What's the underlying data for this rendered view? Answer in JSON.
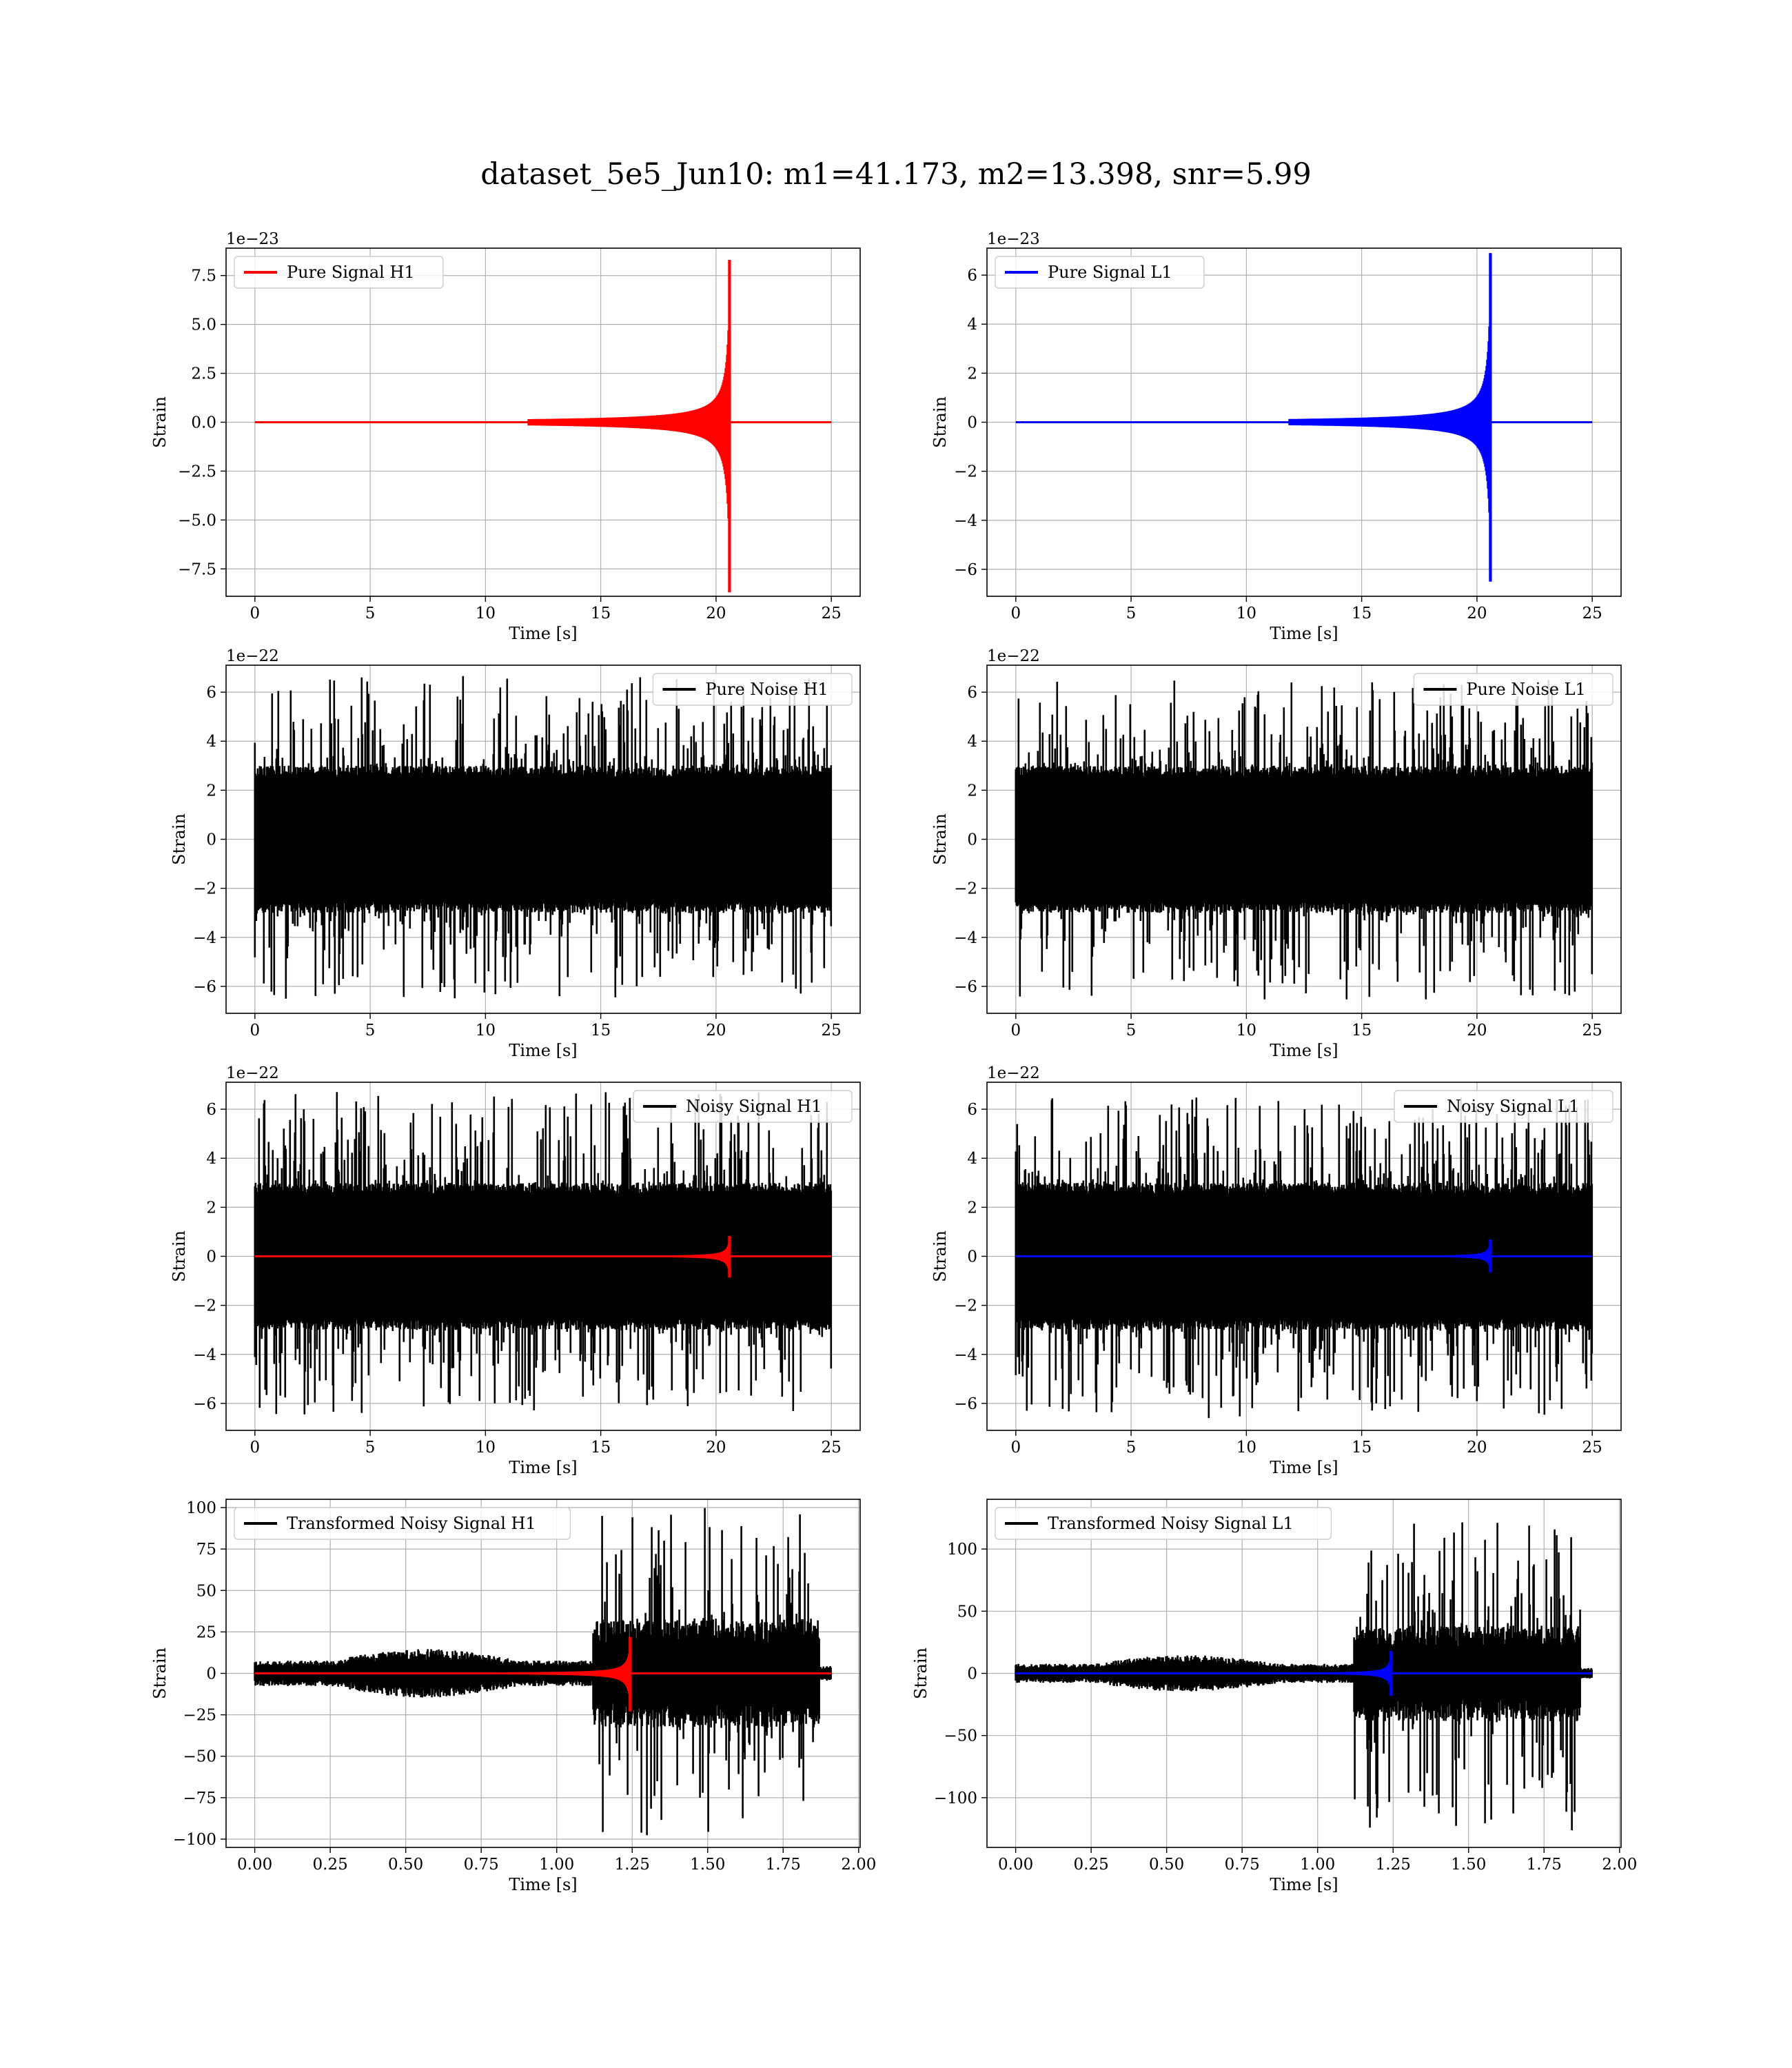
{
  "figure": {
    "title": "dataset_5e5_Jun10: m1=41.173, m2=13.398, snr=5.99"
  },
  "colors": {
    "h1_signal": "#ff0000",
    "l1_signal": "#0000ff",
    "noise": "#000000",
    "grid": "#b0b0b0"
  },
  "chart_data": [
    {
      "id": "pure-signal-h1",
      "type": "line",
      "title": "",
      "xlabel": "Time [s]",
      "ylabel": "Strain",
      "offset_text": "1e−23",
      "xlim": [
        -1.25,
        26.25
      ],
      "ylim": [
        -8.9,
        8.9
      ],
      "xticks": [
        0,
        5,
        10,
        15,
        20,
        25
      ],
      "xtick_labels": [
        "0",
        "5",
        "10",
        "15",
        "20",
        "25"
      ],
      "yticks": [
        -7.5,
        -5.0,
        -2.5,
        0.0,
        2.5,
        5.0,
        7.5
      ],
      "ytick_labels": [
        "−7.5",
        "−5.0",
        "−2.5",
        "0.0",
        "2.5",
        "5.0",
        "7.5"
      ],
      "grid": true,
      "legend": "top-left",
      "series": [
        {
          "name": "Pure Signal H1",
          "kind": "chirp",
          "color": "#ff0000",
          "t_start": 0,
          "t_end": 25,
          "t_merger": 20.6,
          "peak_pos": 8.3,
          "peak_neg": -8.7
        }
      ]
    },
    {
      "id": "pure-signal-l1",
      "type": "line",
      "title": "",
      "xlabel": "Time [s]",
      "ylabel": "Strain",
      "offset_text": "1e−23",
      "xlim": [
        -1.25,
        26.25
      ],
      "ylim": [
        -7.1,
        7.1
      ],
      "xticks": [
        0,
        5,
        10,
        15,
        20,
        25
      ],
      "xtick_labels": [
        "0",
        "5",
        "10",
        "15",
        "20",
        "25"
      ],
      "yticks": [
        -6,
        -4,
        -2,
        0,
        2,
        4,
        6
      ],
      "ytick_labels": [
        "−6",
        "−4",
        "−2",
        "0",
        "2",
        "4",
        "6"
      ],
      "grid": true,
      "legend": "top-left",
      "series": [
        {
          "name": "Pure Signal L1",
          "kind": "chirp",
          "color": "#0000ff",
          "t_start": 0,
          "t_end": 25,
          "t_merger": 20.6,
          "peak_pos": 6.9,
          "peak_neg": -6.5
        }
      ]
    },
    {
      "id": "pure-noise-h1",
      "type": "line",
      "title": "",
      "xlabel": "Time [s]",
      "ylabel": "Strain",
      "offset_text": "1e−22",
      "xlim": [
        -1.25,
        26.25
      ],
      "ylim": [
        -7.1,
        7.1
      ],
      "xticks": [
        0,
        5,
        10,
        15,
        20,
        25
      ],
      "xtick_labels": [
        "0",
        "5",
        "10",
        "15",
        "20",
        "25"
      ],
      "yticks": [
        -6,
        -4,
        -2,
        0,
        2,
        4,
        6
      ],
      "ytick_labels": [
        "−6",
        "−4",
        "−2",
        "0",
        "2",
        "4",
        "6"
      ],
      "grid": true,
      "legend": "top-right",
      "series": [
        {
          "name": "Pure Noise H1",
          "kind": "noise",
          "color": "#000000",
          "t_start": 0,
          "t_end": 25,
          "band": 3.0,
          "max": 6.7,
          "min": -6.5
        }
      ]
    },
    {
      "id": "pure-noise-l1",
      "type": "line",
      "title": "",
      "xlabel": "Time [s]",
      "ylabel": "Strain",
      "offset_text": "1e−22",
      "xlim": [
        -1.25,
        26.25
      ],
      "ylim": [
        -7.1,
        7.1
      ],
      "xticks": [
        0,
        5,
        10,
        15,
        20,
        25
      ],
      "xtick_labels": [
        "0",
        "5",
        "10",
        "15",
        "20",
        "25"
      ],
      "yticks": [
        -6,
        -4,
        -2,
        0,
        2,
        4,
        6
      ],
      "ytick_labels": [
        "−6",
        "−4",
        "−2",
        "0",
        "2",
        "4",
        "6"
      ],
      "grid": true,
      "legend": "top-right",
      "series": [
        {
          "name": "Pure Noise L1",
          "kind": "noise",
          "color": "#000000",
          "t_start": 0,
          "t_end": 25,
          "band": 3.0,
          "max": 6.5,
          "min": -6.6
        }
      ]
    },
    {
      "id": "noisy-signal-h1",
      "type": "line",
      "title": "",
      "xlabel": "Time [s]",
      "ylabel": "Strain",
      "offset_text": "1e−22",
      "xlim": [
        -1.25,
        26.25
      ],
      "ylim": [
        -7.1,
        7.1
      ],
      "xticks": [
        0,
        5,
        10,
        15,
        20,
        25
      ],
      "xtick_labels": [
        "0",
        "5",
        "10",
        "15",
        "20",
        "25"
      ],
      "yticks": [
        -6,
        -4,
        -2,
        0,
        2,
        4,
        6
      ],
      "ytick_labels": [
        "−6",
        "−4",
        "−2",
        "0",
        "2",
        "4",
        "6"
      ],
      "grid": true,
      "legend": "top-right",
      "series": [
        {
          "name": "Noisy Signal H1",
          "kind": "noise",
          "color": "#000000",
          "t_start": 0,
          "t_end": 25,
          "band": 3.0,
          "max": 6.7,
          "min": -6.5
        },
        {
          "name": "",
          "kind": "chirp",
          "color": "#ff0000",
          "t_start": 0,
          "t_end": 25,
          "t_merger": 20.6,
          "peak_pos": 0.83,
          "peak_neg": -0.87
        }
      ]
    },
    {
      "id": "noisy-signal-l1",
      "type": "line",
      "title": "",
      "xlabel": "Time [s]",
      "ylabel": "Strain",
      "offset_text": "1e−22",
      "xlim": [
        -1.25,
        26.25
      ],
      "ylim": [
        -7.1,
        7.1
      ],
      "xticks": [
        0,
        5,
        10,
        15,
        20,
        25
      ],
      "xtick_labels": [
        "0",
        "5",
        "10",
        "15",
        "20",
        "25"
      ],
      "yticks": [
        -6,
        -4,
        -2,
        0,
        2,
        4,
        6
      ],
      "ytick_labels": [
        "−6",
        "−4",
        "−2",
        "0",
        "2",
        "4",
        "6"
      ],
      "grid": true,
      "legend": "top-right",
      "series": [
        {
          "name": "Noisy Signal L1",
          "kind": "noise",
          "color": "#000000",
          "t_start": 0,
          "t_end": 25,
          "band": 3.0,
          "max": 6.5,
          "min": -6.6
        },
        {
          "name": "",
          "kind": "chirp",
          "color": "#0000ff",
          "t_start": 0,
          "t_end": 25,
          "t_merger": 20.6,
          "peak_pos": 0.69,
          "peak_neg": -0.65
        }
      ]
    },
    {
      "id": "transformed-noisy-signal-h1",
      "type": "line",
      "title": "",
      "xlabel": "Time [s]",
      "ylabel": "Strain",
      "offset_text": "",
      "xlim": [
        -0.095,
        2.005
      ],
      "ylim": [
        -105,
        105
      ],
      "xticks": [
        0.0,
        0.25,
        0.5,
        0.75,
        1.0,
        1.25,
        1.5,
        1.75,
        2.0
      ],
      "xtick_labels": [
        "0.00",
        "0.25",
        "0.50",
        "0.75",
        "1.00",
        "1.25",
        "1.50",
        "1.75",
        "2.00"
      ],
      "yticks": [
        -100,
        -75,
        -50,
        -25,
        0,
        25,
        50,
        75,
        100
      ],
      "ytick_labels": [
        "−100",
        "−75",
        "−50",
        "−25",
        "0",
        "25",
        "50",
        "75",
        "100"
      ],
      "grid": true,
      "legend": "top-left",
      "series": [
        {
          "name": "Transformed Noisy Signal H1",
          "kind": "whitened",
          "color": "#000000",
          "t_start": 0,
          "t_end": 1.91,
          "t_jump": 1.12,
          "t_stop": 1.87,
          "band_low": 7,
          "band_high": 30,
          "max": 100,
          "min": -100
        },
        {
          "name": "",
          "kind": "chirp",
          "color": "#ff0000",
          "t_start": 0,
          "t_end": 1.91,
          "t_merger": 1.245,
          "peak_pos": 22,
          "peak_neg": -23
        }
      ]
    },
    {
      "id": "transformed-noisy-signal-l1",
      "type": "line",
      "title": "",
      "xlabel": "Time [s]",
      "ylabel": "Strain",
      "offset_text": "",
      "xlim": [
        -0.095,
        2.005
      ],
      "ylim": [
        -140,
        140
      ],
      "xticks": [
        0.0,
        0.25,
        0.5,
        0.75,
        1.0,
        1.25,
        1.5,
        1.75,
        2.0
      ],
      "xtick_labels": [
        "0.00",
        "0.25",
        "0.50",
        "0.75",
        "1.00",
        "1.25",
        "1.50",
        "1.75",
        "2.00"
      ],
      "yticks": [
        -100,
        -50,
        0,
        50,
        100
      ],
      "ytick_labels": [
        "−100",
        "−50",
        "0",
        "50",
        "100"
      ],
      "grid": true,
      "legend": "top-left",
      "series": [
        {
          "name": "Transformed Noisy Signal L1",
          "kind": "whitened",
          "color": "#000000",
          "t_start": 0,
          "t_end": 1.91,
          "t_jump": 1.12,
          "t_stop": 1.87,
          "band_low": 7,
          "band_high": 35,
          "max": 125,
          "min": -128
        },
        {
          "name": "",
          "kind": "chirp",
          "color": "#0000ff",
          "t_start": 0,
          "t_end": 1.91,
          "t_merger": 1.245,
          "peak_pos": 18,
          "peak_neg": -18
        }
      ]
    }
  ]
}
